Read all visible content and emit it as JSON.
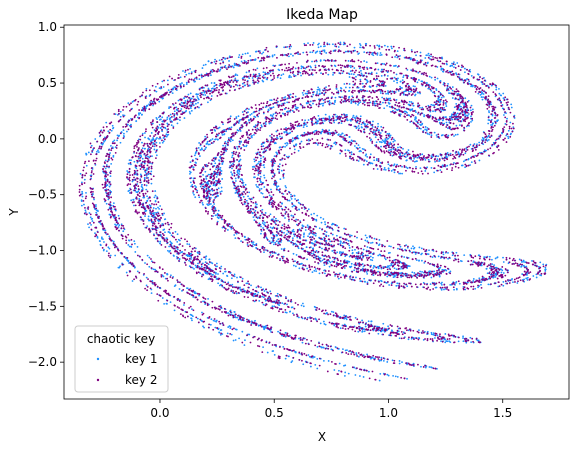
{
  "chart_data": {
    "type": "scatter",
    "title": "Ikeda Map",
    "xlabel": "X",
    "ylabel": "Y",
    "xlim": [
      -0.42,
      1.79
    ],
    "ylim": [
      -2.33,
      1.02
    ],
    "xticks": [
      0.0,
      0.5,
      1.0,
      1.5
    ],
    "xtick_labels": [
      "0.0",
      "0.5",
      "1.0",
      "1.5"
    ],
    "yticks": [
      1.0,
      0.5,
      0.0,
      -0.5,
      -1.0,
      -1.5,
      -2.0
    ],
    "ytick_labels": [
      "1.0",
      "0.5",
      "0.0",
      "−0.5",
      "−1.0",
      "−1.5",
      "−2.0"
    ],
    "grid": false,
    "legend": {
      "title": "chaotic key",
      "placement": "lower-left"
    },
    "generator": {
      "equation": "ikeda",
      "parameter_u": 0.9,
      "iterations": 5000
    },
    "series": [
      {
        "name": "key 1",
        "color": "#1e90ff",
        "marker": "point",
        "start": [
          0.1,
          0.1
        ]
      },
      {
        "name": "key 2",
        "color": "#800080",
        "marker": "point",
        "start": [
          0.1001,
          0.1
        ]
      }
    ]
  }
}
